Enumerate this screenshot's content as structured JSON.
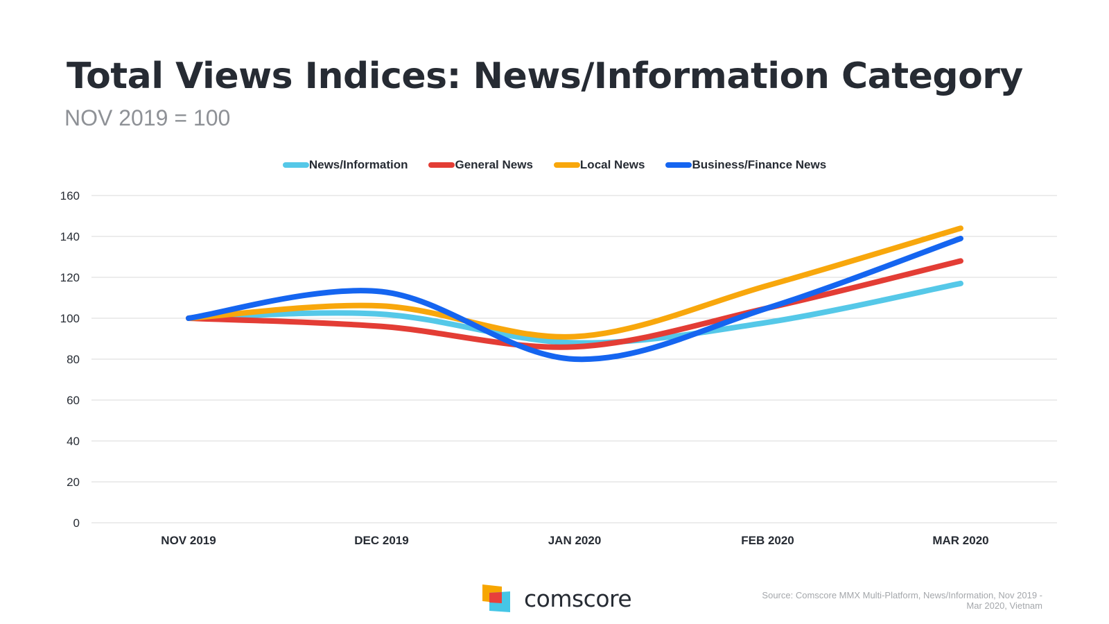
{
  "title": "Total Views Indices: News/Information Category",
  "subtitle": "NOV 2019 = 100",
  "source_line1": "Source: Comscore MMX Multi-Platform, News/Information, Nov 2019 -",
  "source_line2": "Mar 2020, Vietnam",
  "logo_text": "comscore",
  "logo_colors": {
    "orange": "#f7a600",
    "red": "#e8403b",
    "cyan": "#45c6e6"
  },
  "chart_data": {
    "type": "line",
    "title": "Total Views Indices: News/Information Category",
    "subtitle": "NOV 2019 = 100",
    "categories": [
      "NOV 2019",
      "DEC 2019",
      "JAN 2020",
      "FEB 2020",
      "MAR 2020"
    ],
    "ylim": [
      0,
      160
    ],
    "yticks": [
      0,
      20,
      40,
      60,
      80,
      100,
      120,
      140,
      160
    ],
    "grid": true,
    "legend_position": "top-center",
    "xlabel": "",
    "ylabel": "",
    "series": [
      {
        "name": "News/Information",
        "color": "#55c8e8",
        "values": [
          100,
          102,
          88,
          98,
          117
        ]
      },
      {
        "name": "General News",
        "color": "#e33d35",
        "values": [
          100,
          96,
          86,
          105,
          128
        ]
      },
      {
        "name": "Local News",
        "color": "#f8a70c",
        "values": [
          100,
          106,
          91,
          116,
          144
        ]
      },
      {
        "name": "Business/Finance News",
        "color": "#1565f0",
        "values": [
          100,
          113,
          80,
          105,
          139
        ]
      }
    ]
  }
}
